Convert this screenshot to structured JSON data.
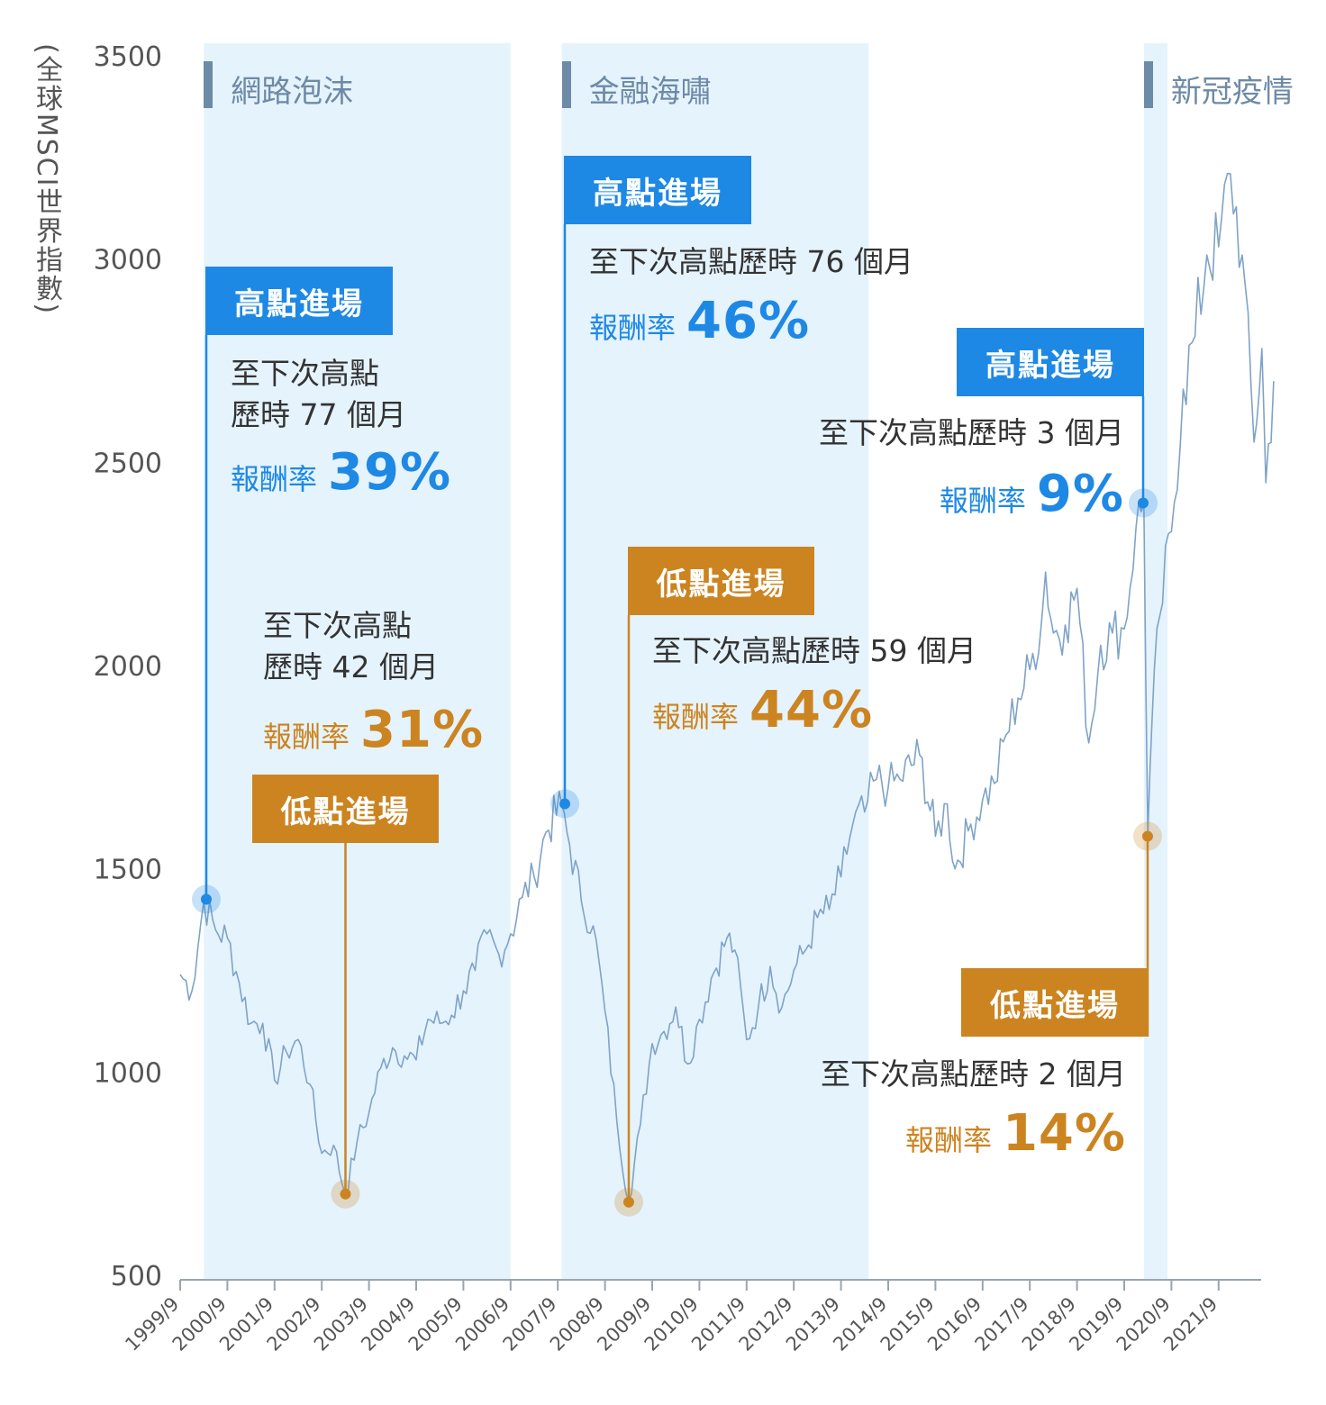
{
  "chart_data": {
    "type": "line",
    "ylabel": "(全球MSCI世界指數)",
    "ylim": [
      500,
      3500
    ],
    "yticks": [
      "3500",
      "3000",
      "2500",
      "2000",
      "1500",
      "1000",
      "500"
    ],
    "xticks": [
      "1999/9",
      "2000/9",
      "2001/9",
      "2002/9",
      "2003/9",
      "2004/9",
      "2005/9",
      "2006/9",
      "2007/9",
      "2008/9",
      "2009/9",
      "2010/9",
      "2011/9",
      "2012/9",
      "2013/9",
      "2014/9",
      "2015/9",
      "2016/9",
      "2017/9",
      "2018/9",
      "2019/9",
      "2020/9",
      "2021/9"
    ],
    "periods": [
      {
        "label": "網路泡沫",
        "start": "2000/3",
        "end": "2006/9"
      },
      {
        "label": "金融海嘯",
        "start": "2007/10",
        "end": "2014/4"
      },
      {
        "label": "新冠疫情",
        "start": "2020/2",
        "end": "2020/8"
      }
    ],
    "series": [
      {
        "values": [
          [
            "1999/9",
            1240
          ],
          [
            "1999/12",
            1200
          ],
          [
            "2000/3",
            1420
          ],
          [
            "2000/6",
            1350
          ],
          [
            "2000/9",
            1330
          ],
          [
            "2000/12",
            1220
          ],
          [
            "2001/3",
            1120
          ],
          [
            "2001/6",
            1120
          ],
          [
            "2001/9",
            980
          ],
          [
            "2001/12",
            1050
          ],
          [
            "2002/3",
            1080
          ],
          [
            "2002/6",
            970
          ],
          [
            "2002/9",
            800
          ],
          [
            "2002/12",
            820
          ],
          [
            "2003/3",
            700
          ],
          [
            "2003/6",
            830
          ],
          [
            "2003/9",
            900
          ],
          [
            "2003/12",
            1010
          ],
          [
            "2004/3",
            1060
          ],
          [
            "2004/6",
            1040
          ],
          [
            "2004/9",
            1030
          ],
          [
            "2004/12",
            1130
          ],
          [
            "2005/3",
            1120
          ],
          [
            "2005/6",
            1140
          ],
          [
            "2005/9",
            1200
          ],
          [
            "2005/12",
            1250
          ],
          [
            "2006/3",
            1340
          ],
          [
            "2006/6",
            1290
          ],
          [
            "2006/9",
            1340
          ],
          [
            "2006/12",
            1430
          ],
          [
            "2007/3",
            1480
          ],
          [
            "2007/6",
            1590
          ],
          [
            "2007/10",
            1660
          ],
          [
            "2007/12",
            1560
          ],
          [
            "2008/3",
            1420
          ],
          [
            "2008/6",
            1360
          ],
          [
            "2008/9",
            1150
          ],
          [
            "2008/12",
            880
          ],
          [
            "2009/3",
            680
          ],
          [
            "2009/6",
            870
          ],
          [
            "2009/9",
            1070
          ],
          [
            "2009/12",
            1100
          ],
          [
            "2010/3",
            1160
          ],
          [
            "2010/6",
            1020
          ],
          [
            "2010/9",
            1130
          ],
          [
            "2010/12",
            1230
          ],
          [
            "2011/4",
            1330
          ],
          [
            "2011/6",
            1300
          ],
          [
            "2011/9",
            1080
          ],
          [
            "2011/12",
            1160
          ],
          [
            "2012/3",
            1260
          ],
          [
            "2012/6",
            1160
          ],
          [
            "2012/9",
            1250
          ],
          [
            "2012/12",
            1300
          ],
          [
            "2013/3",
            1380
          ],
          [
            "2013/6",
            1400
          ],
          [
            "2013/9",
            1480
          ],
          [
            "2013/12",
            1610
          ],
          [
            "2014/3",
            1640
          ],
          [
            "2014/6",
            1720
          ],
          [
            "2014/9",
            1700
          ],
          [
            "2014/12",
            1720
          ],
          [
            "2015/5",
            1780
          ],
          [
            "2015/9",
            1580
          ],
          [
            "2015/12",
            1660
          ],
          [
            "2016/2",
            1500
          ],
          [
            "2016/6",
            1610
          ],
          [
            "2016/9",
            1670
          ],
          [
            "2016/12",
            1710
          ],
          [
            "2017/3",
            1830
          ],
          [
            "2017/6",
            1920
          ],
          [
            "2017/9",
            1990
          ],
          [
            "2017/12",
            2110
          ],
          [
            "2018/1",
            2230
          ],
          [
            "2018/3",
            2080
          ],
          [
            "2018/6",
            2100
          ],
          [
            "2018/9",
            2190
          ],
          [
            "2018/12",
            1810
          ],
          [
            "2019/3",
            2050
          ],
          [
            "2019/6",
            2080
          ],
          [
            "2019/9",
            2090
          ],
          [
            "2019/12",
            2340
          ],
          [
            "2020/2",
            2400
          ],
          [
            "2020/3",
            1580
          ],
          [
            "2020/4",
            1850
          ],
          [
            "2020/6",
            2120
          ],
          [
            "2020/9",
            2330
          ],
          [
            "2020/12",
            2680
          ],
          [
            "2021/3",
            2810
          ],
          [
            "2021/6",
            3010
          ],
          [
            "2021/9",
            3030
          ],
          [
            "2021/12",
            3210
          ],
          [
            "2022/3",
            3010
          ],
          [
            "2022/6",
            2550
          ],
          [
            "2022/8",
            2780
          ],
          [
            "2022/9",
            2450
          ],
          [
            "2022/11",
            2700
          ]
        ]
      }
    ],
    "markers": [
      {
        "kind": "high",
        "date": "2000/3",
        "value": 1425,
        "label": "高點進場",
        "note_lines": [
          "至下次高點",
          "歷時 77 個月"
        ],
        "return_label": "報酬率",
        "return_value": "39%"
      },
      {
        "kind": "low",
        "date": "2003/3",
        "value": 700,
        "label": "低點進場",
        "note_lines": [
          "至下次高點",
          "歷時 42 個月"
        ],
        "return_label": "報酬率",
        "return_value": "31%"
      },
      {
        "kind": "high",
        "date": "2007/10",
        "value": 1660,
        "label": "高點進場",
        "note_lines": [
          "至下次高點歷時 76 個月"
        ],
        "return_label": "報酬率",
        "return_value": "46%"
      },
      {
        "kind": "low",
        "date": "2009/3",
        "value": 680,
        "label": "低點進場",
        "note_lines": [
          "至下次高點歷時 59 個月"
        ],
        "return_label": "報酬率",
        "return_value": "44%"
      },
      {
        "kind": "high",
        "date": "2020/2",
        "value": 2400,
        "label": "高點進場",
        "note_lines": [
          "至下次高點歷時 3 個月"
        ],
        "return_label": "報酬率",
        "return_value": "9%"
      },
      {
        "kind": "low",
        "date": "2020/3",
        "value": 1580,
        "label": "低點進場",
        "note_lines": [
          "至下次高點歷時 2 個月"
        ],
        "return_label": "報酬率",
        "return_value": "14%"
      }
    ],
    "colors": {
      "line": "#7fa3c6",
      "period_fill": "#e5f3fd",
      "period_label": "#6d8aa6",
      "high": "#1e88e5",
      "low": "#cc8420",
      "axis": "#9aa5ad",
      "tick_text": "#555555"
    }
  }
}
